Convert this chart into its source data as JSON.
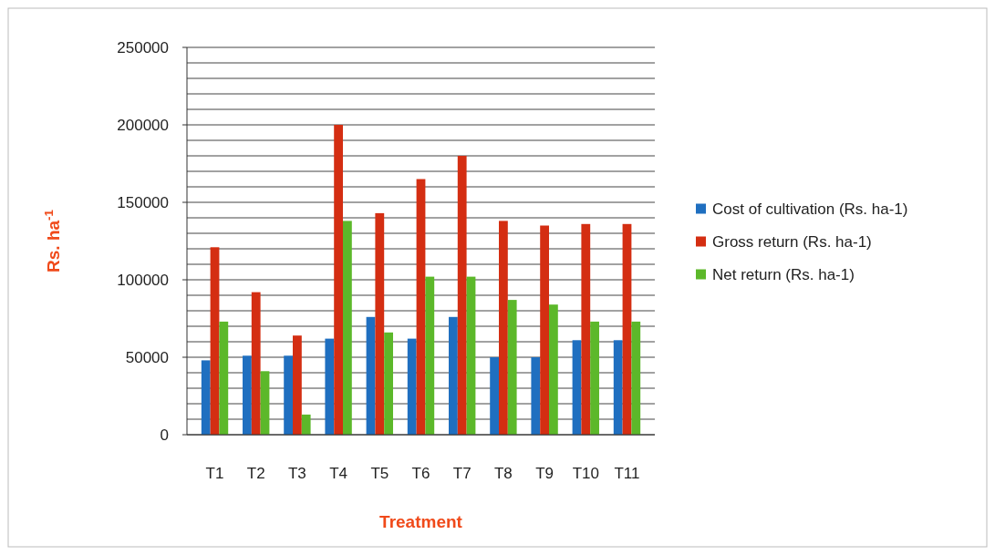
{
  "chart_data": {
    "type": "bar",
    "xlabel": "Treatment",
    "ylabel": "Rs. ha$^{-1}$",
    "categories": [
      "T1",
      "T2",
      "T3",
      "T4",
      "T5",
      "T6",
      "T7",
      "T8",
      "T9",
      "T10",
      "T11"
    ],
    "series": [
      {
        "name": "Cost of cultivation (Rs. ha-1)",
        "color": "#1f6fc0",
        "values": [
          48000,
          51000,
          51000,
          62000,
          76000,
          62000,
          76000,
          50000,
          50000,
          61000,
          61000
        ]
      },
      {
        "name": "Gross return (Rs. ha-1)",
        "color": "#d42e12",
        "values": [
          121000,
          92000,
          64000,
          200000,
          143000,
          165000,
          180000,
          138000,
          135000,
          136000,
          136000
        ]
      },
      {
        "name": "Net return (Rs. ha-1)",
        "color": "#5cb82a",
        "values": [
          73000,
          41000,
          13000,
          138000,
          66000,
          102000,
          102000,
          87000,
          84000,
          73000,
          73000
        ]
      }
    ],
    "ylim": [
      0,
      250000
    ],
    "yticks": [
      0,
      {
        "value": 10000,
        "label": null
      },
      {
        "value": 20000,
        "label": null
      },
      {
        "value": 30000,
        "label": null
      },
      {
        "value": 40000,
        "label": null
      },
      50000,
      {
        "value": 60000,
        "label": null
      },
      {
        "value": 70000,
        "label": null
      },
      {
        "value": 80000,
        "label": null
      },
      {
        "value": 90000,
        "label": null
      },
      100000,
      {
        "value": 110000,
        "label": null
      },
      {
        "value": 120000,
        "label": null
      },
      {
        "value": 130000,
        "label": null
      },
      {
        "value": 140000,
        "label": null
      },
      150000,
      {
        "value": 160000,
        "label": null
      },
      {
        "value": 170000,
        "label": null
      },
      {
        "value": 180000,
        "label": null
      },
      {
        "value": 190000,
        "label": null
      },
      200000,
      {
        "value": 210000,
        "label": null
      },
      {
        "value": 220000,
        "label": null
      },
      {
        "value": 230000,
        "label": null
      },
      {
        "value": 240000,
        "label": null
      },
      250000
    ],
    "grid": "y",
    "legend": "right"
  }
}
